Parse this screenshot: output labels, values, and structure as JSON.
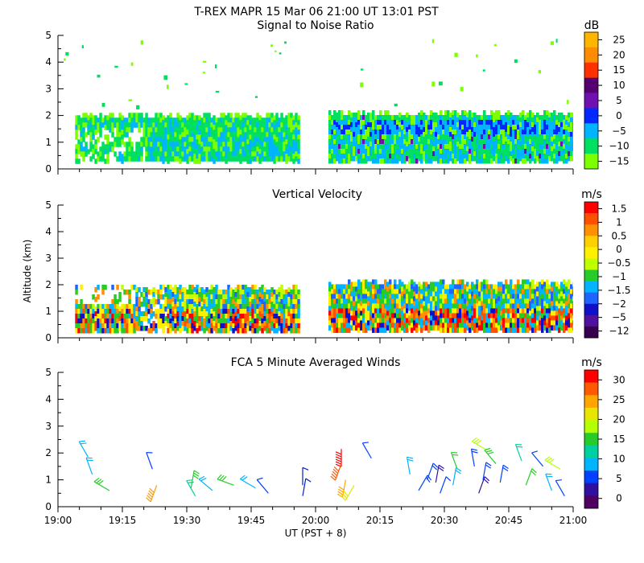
{
  "header": {
    "title": "T-REX   MAPR 15 Mar 06   21:00 UT   13:01   PST"
  },
  "x_axis": {
    "label": "UT  (PST + 8)",
    "ticks": [
      "19:00",
      "19:15",
      "19:30",
      "19:45",
      "20:00",
      "20:15",
      "20:30",
      "20:45",
      "21:00"
    ],
    "range_minutes": [
      0,
      120
    ]
  },
  "y_axis": {
    "label": "Altitude (km)",
    "ticks": [
      "0",
      "1",
      "2",
      "3",
      "4",
      "5"
    ],
    "range_km": [
      0,
      5
    ]
  },
  "colors": {
    "scale": [
      "#ff0000",
      "#ff5a00",
      "#ffa000",
      "#ffd700",
      "#ffff00",
      "#b4ff00",
      "#22cc22",
      "#00e050",
      "#00c0ff",
      "#0090ff",
      "#0033ff",
      "#3010a0",
      "#550080",
      "#2a0030"
    ]
  },
  "chart_data": [
    {
      "type": "heatmap",
      "title": "Signal to Noise Ratio",
      "unit": "dB",
      "colorbar_labels": [
        "25",
        "20",
        "15",
        "10",
        "5",
        "0",
        "−5",
        "−10",
        "−15"
      ],
      "colorbar_colors": [
        "#ffb400",
        "#ff8c00",
        "#ff3000",
        "#550070",
        "#7010b0",
        "#0028ff",
        "#00b4ff",
        "#00e060",
        "#7cff00"
      ],
      "data_coverage": [
        {
          "start_min": 4,
          "end_min": 56,
          "top_km": 2.1
        },
        {
          "start_min": 63,
          "end_min": 120,
          "top_km": 2.2
        }
      ]
    },
    {
      "type": "heatmap",
      "title": "Vertical Velocity",
      "unit": "m/s",
      "colorbar_labels": [
        "1.5",
        "1",
        "0.5",
        "0",
        "−0.5",
        "−1",
        "−1.5",
        "−2",
        "−5",
        "−12"
      ],
      "colorbar_colors": [
        "#ff0000",
        "#ff5000",
        "#ff9000",
        "#ffd000",
        "#fff000",
        "#c0ff00",
        "#28cc28",
        "#00b4ff",
        "#1e64ff",
        "#1010c8",
        "#5010a0",
        "#3a0050"
      ],
      "data_coverage": [
        {
          "start_min": 4,
          "end_min": 56,
          "top_km": 2.0
        },
        {
          "start_min": 63,
          "end_min": 120,
          "top_km": 2.2
        }
      ]
    },
    {
      "type": "scatter",
      "title": "FCA 5 Minute Averaged Winds",
      "unit": "m/s",
      "colorbar_labels": [
        "30",
        "25",
        "20",
        "15",
        "10",
        "5",
        "0"
      ],
      "colorbar_colors": [
        "#ff0000",
        "#ff5a00",
        "#ffa500",
        "#e6e600",
        "#b4ff00",
        "#28cc28",
        "#00d0a0",
        "#00b4ff",
        "#0040ff",
        "#3010a0",
        "#500060"
      ],
      "barbs": [
        {
          "t": 7,
          "z": 1.85,
          "dir": 330,
          "spd": 10,
          "c": "#00b4ff"
        },
        {
          "t": 8,
          "z": 1.2,
          "dir": 340,
          "spd": 10,
          "c": "#00b4ff"
        },
        {
          "t": 12,
          "z": 0.6,
          "dir": 300,
          "spd": 15,
          "c": "#28cc28"
        },
        {
          "t": 22,
          "z": 1.4,
          "dir": 340,
          "spd": 5,
          "c": "#0040ff"
        },
        {
          "t": 23,
          "z": 0.8,
          "dir": 200,
          "spd": 25,
          "c": "#ff9a00"
        },
        {
          "t": 31,
          "z": 0.7,
          "dir": 10,
          "spd": 15,
          "c": "#28cc28"
        },
        {
          "t": 32,
          "z": 0.4,
          "dir": 330,
          "spd": 10,
          "c": "#00d0a0"
        },
        {
          "t": 36,
          "z": 0.6,
          "dir": 310,
          "spd": 10,
          "c": "#00b4ff"
        },
        {
          "t": 41,
          "z": 0.8,
          "dir": 290,
          "spd": 15,
          "c": "#28cc28"
        },
        {
          "t": 46,
          "z": 0.7,
          "dir": 300,
          "spd": 10,
          "c": "#00b4ff"
        },
        {
          "t": 49,
          "z": 0.5,
          "dir": 320,
          "spd": 5,
          "c": "#0040ff"
        },
        {
          "t": 57,
          "z": 0.8,
          "dir": 0,
          "spd": 5,
          "c": "#0020c0"
        },
        {
          "t": 57,
          "z": 0.4,
          "dir": 10,
          "spd": 5,
          "c": "#0020c0"
        },
        {
          "t": 66,
          "z": 2.15,
          "dir": 180,
          "spd": 30,
          "c": "#ff0000"
        },
        {
          "t": 66,
          "z": 1.6,
          "dir": 200,
          "spd": 25,
          "c": "#ff5a00"
        },
        {
          "t": 67,
          "z": 1.0,
          "dir": 190,
          "spd": 20,
          "c": "#ffa500"
        },
        {
          "t": 69,
          "z": 0.8,
          "dir": 210,
          "spd": 15,
          "c": "#e6e600"
        },
        {
          "t": 73,
          "z": 1.8,
          "dir": 330,
          "spd": 5,
          "c": "#0040ff"
        },
        {
          "t": 82,
          "z": 1.2,
          "dir": 350,
          "spd": 10,
          "c": "#00b4ff"
        },
        {
          "t": 84,
          "z": 0.6,
          "dir": 30,
          "spd": 10,
          "c": "#0040ff"
        },
        {
          "t": 86,
          "z": 1.0,
          "dir": 20,
          "spd": 10,
          "c": "#0040ff"
        },
        {
          "t": 88,
          "z": 0.9,
          "dir": 10,
          "spd": 10,
          "c": "#3010a0"
        },
        {
          "t": 89,
          "z": 0.5,
          "dir": 20,
          "spd": 5,
          "c": "#0040ff"
        },
        {
          "t": 92,
          "z": 0.8,
          "dir": 10,
          "spd": 10,
          "c": "#00b4ff"
        },
        {
          "t": 93,
          "z": 1.4,
          "dir": 340,
          "spd": 10,
          "c": "#28cc28"
        },
        {
          "t": 97,
          "z": 1.5,
          "dir": 350,
          "spd": 10,
          "c": "#0040ff"
        },
        {
          "t": 98,
          "z": 0.5,
          "dir": 20,
          "spd": 10,
          "c": "#3010a0"
        },
        {
          "t": 99,
          "z": 1.0,
          "dir": 10,
          "spd": 10,
          "c": "#0040ff"
        },
        {
          "t": 100,
          "z": 2.1,
          "dir": 300,
          "spd": 15,
          "c": "#b4ff00"
        },
        {
          "t": 102,
          "z": 1.6,
          "dir": 320,
          "spd": 15,
          "c": "#28cc28"
        },
        {
          "t": 103,
          "z": 0.9,
          "dir": 10,
          "spd": 10,
          "c": "#0040ff"
        },
        {
          "t": 108,
          "z": 1.7,
          "dir": 340,
          "spd": 10,
          "c": "#00d0a0"
        },
        {
          "t": 109,
          "z": 0.8,
          "dir": 20,
          "spd": 10,
          "c": "#28cc28"
        },
        {
          "t": 113,
          "z": 1.5,
          "dir": 320,
          "spd": 5,
          "c": "#0040ff"
        },
        {
          "t": 115,
          "z": 0.6,
          "dir": 340,
          "spd": 10,
          "c": "#00b4ff"
        },
        {
          "t": 117,
          "z": 1.4,
          "dir": 300,
          "spd": 15,
          "c": "#b4ff00"
        },
        {
          "t": 118,
          "z": 0.4,
          "dir": 330,
          "spd": 5,
          "c": "#0040ff"
        }
      ]
    }
  ]
}
